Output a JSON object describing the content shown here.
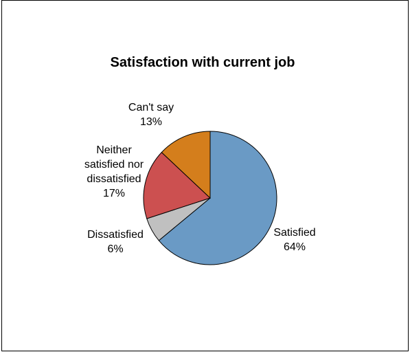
{
  "chart_data": {
    "type": "pie",
    "title": "Satisfaction with current job",
    "slices": [
      {
        "label_lines": [
          "Satisfied"
        ],
        "value": 64,
        "value_label": "64%",
        "color": "#6a9ac5"
      },
      {
        "label_lines": [
          "Dissatisfied"
        ],
        "value": 6,
        "value_label": "6%",
        "color": "#c0c0c0"
      },
      {
        "label_lines": [
          "Neither",
          "satisfied nor",
          "dissatisfied"
        ],
        "value": 17,
        "value_label": "17%",
        "color": "#cc5050"
      },
      {
        "label_lines": [
          "Can't say"
        ],
        "value": 13,
        "value_label": "13%",
        "color": "#d47e1c"
      }
    ],
    "legend": "none",
    "grid": false
  }
}
